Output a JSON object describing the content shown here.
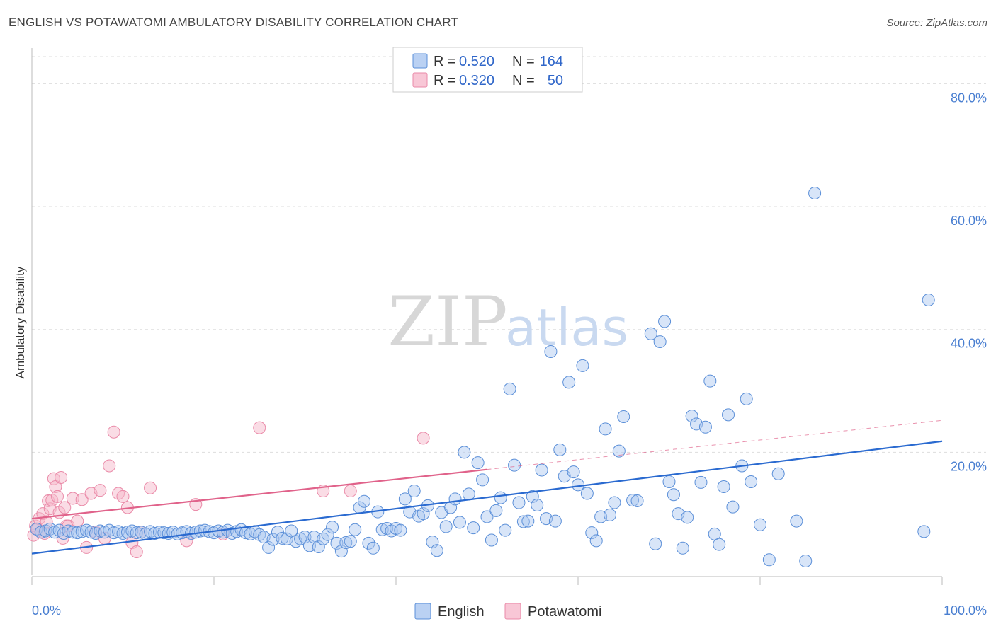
{
  "title": "ENGLISH VS POTAWATOMI AMBULATORY DISABILITY CORRELATION CHART",
  "source": "Source: ZipAtlas.com",
  "watermark": {
    "zip": "ZIP",
    "atlas": "atlas"
  },
  "colors": {
    "english_fill": "#a9c6f0",
    "english_stroke": "#5b8fd8",
    "english_line": "#2a6ad0",
    "potawatomi_fill": "#f6b9cc",
    "potawatomi_stroke": "#ea8aa8",
    "potawatomi_line": "#e0628a",
    "grid": "#dddddd",
    "tick_label": "#4a7fd1"
  },
  "legend": {
    "r_label": "R =",
    "n_label": "N =",
    "rows": [
      {
        "series": "English",
        "r": "0.520",
        "n": "164"
      },
      {
        "series": "Potawatomi",
        "r": "0.320",
        "n": "50"
      }
    ]
  },
  "chart_data": {
    "type": "scatter",
    "title": "ENGLISH VS POTAWATOMI AMBULATORY DISABILITY CORRELATION CHART",
    "xlabel": "",
    "ylabel": "Ambulatory Disability",
    "xlim": [
      0,
      100
    ],
    "ylim": [
      0,
      85
    ],
    "x_tick_labels": [
      "0.0%",
      "100.0%"
    ],
    "y_ticks": [
      20,
      40,
      60,
      80
    ],
    "y_tick_labels": [
      "20.0%",
      "40.0%",
      "60.0%",
      "80.0%"
    ],
    "legend_labels": [
      "English",
      "Potawatomi"
    ],
    "series": [
      {
        "name": "English",
        "trend": {
          "x": [
            0,
            100
          ],
          "y": [
            3.5,
            21.8
          ]
        },
        "points": [
          [
            0.5,
            7.5
          ],
          [
            1,
            7
          ],
          [
            1.5,
            7.2
          ],
          [
            2,
            7.5
          ],
          [
            2.5,
            7
          ],
          [
            3,
            7.3
          ],
          [
            3.5,
            6.8
          ],
          [
            4,
            7.2
          ],
          [
            4.5,
            7
          ],
          [
            5,
            6.9
          ],
          [
            5.5,
            7.1
          ],
          [
            6,
            7.3
          ],
          [
            6.5,
            7
          ],
          [
            7,
            6.8
          ],
          [
            7.5,
            7.2
          ],
          [
            8,
            7
          ],
          [
            8.5,
            7.3
          ],
          [
            9,
            6.9
          ],
          [
            9.5,
            7.1
          ],
          [
            10,
            6.8
          ],
          [
            10.5,
            7
          ],
          [
            11,
            7.2
          ],
          [
            11.5,
            6.9
          ],
          [
            12,
            7
          ],
          [
            12.5,
            6.7
          ],
          [
            13,
            7.1
          ],
          [
            13.5,
            6.8
          ],
          [
            14,
            7
          ],
          [
            14.5,
            6.9
          ],
          [
            15,
            6.8
          ],
          [
            15.5,
            7
          ],
          [
            16,
            6.7
          ],
          [
            16.5,
            6.9
          ],
          [
            17,
            7.1
          ],
          [
            17.5,
            6.8
          ],
          [
            18,
            7
          ],
          [
            18.5,
            7.2
          ],
          [
            19,
            7.3
          ],
          [
            19.5,
            7.1
          ],
          [
            20,
            6.9
          ],
          [
            20.5,
            7.2
          ],
          [
            21,
            7
          ],
          [
            21.5,
            7.3
          ],
          [
            22,
            6.8
          ],
          [
            22.5,
            7.1
          ],
          [
            23,
            7.4
          ],
          [
            23.5,
            6.9
          ],
          [
            24,
            6.7
          ],
          [
            24.5,
            7.1
          ],
          [
            25,
            6.6
          ],
          [
            25.5,
            6.2
          ],
          [
            26,
            4.5
          ],
          [
            26.5,
            5.8
          ],
          [
            27,
            7
          ],
          [
            27.5,
            6
          ],
          [
            28,
            5.9
          ],
          [
            28.5,
            7.2
          ],
          [
            29,
            5.5
          ],
          [
            29.5,
            5.9
          ],
          [
            30,
            6.2
          ],
          [
            30.5,
            4.8
          ],
          [
            31,
            6.2
          ],
          [
            31.5,
            4.6
          ],
          [
            32,
            5.9
          ],
          [
            32.5,
            6.6
          ],
          [
            33,
            7.8
          ],
          [
            33.5,
            5.2
          ],
          [
            34,
            3.9
          ],
          [
            34.5,
            5.3
          ],
          [
            35,
            5.5
          ],
          [
            35.5,
            7.4
          ],
          [
            36,
            11
          ],
          [
            36.5,
            12
          ],
          [
            37,
            5.2
          ],
          [
            37.5,
            4.4
          ],
          [
            38,
            10.3
          ],
          [
            38.5,
            7.4
          ],
          [
            39,
            7.6
          ],
          [
            39.5,
            7.2
          ],
          [
            40,
            7.6
          ],
          [
            40.5,
            7.3
          ],
          [
            41,
            12.4
          ],
          [
            41.5,
            10.3
          ],
          [
            42,
            13.7
          ],
          [
            42.5,
            9.6
          ],
          [
            43,
            10
          ],
          [
            43.5,
            11.3
          ],
          [
            44,
            5.4
          ],
          [
            44.5,
            4
          ],
          [
            45,
            10.2
          ],
          [
            45.5,
            7.9
          ],
          [
            46,
            11
          ],
          [
            46.5,
            12.4
          ],
          [
            47,
            8.6
          ],
          [
            47.5,
            20
          ],
          [
            48,
            13.2
          ],
          [
            48.5,
            7.7
          ],
          [
            49,
            18.3
          ],
          [
            49.5,
            15.5
          ],
          [
            50,
            9.5
          ],
          [
            50.5,
            5.7
          ],
          [
            51,
            10.5
          ],
          [
            51.5,
            12.6
          ],
          [
            52,
            7.3
          ],
          [
            52.5,
            30.3
          ],
          [
            53,
            17.9
          ],
          [
            53.5,
            11.8
          ],
          [
            54,
            8.7
          ],
          [
            54.5,
            8.8
          ],
          [
            55,
            12.8
          ],
          [
            55.5,
            11.4
          ],
          [
            56,
            17.1
          ],
          [
            56.5,
            9.2
          ],
          [
            57,
            36.4
          ],
          [
            57.5,
            8.8
          ],
          [
            58,
            20.4
          ],
          [
            58.5,
            16.1
          ],
          [
            59,
            31.4
          ],
          [
            59.5,
            16.8
          ],
          [
            60,
            14.7
          ],
          [
            60.5,
            34.1
          ],
          [
            61,
            13.3
          ],
          [
            61.5,
            6.9
          ],
          [
            62,
            5.6
          ],
          [
            62.5,
            9.5
          ],
          [
            63,
            23.8
          ],
          [
            63.5,
            9.8
          ],
          [
            64,
            11.8
          ],
          [
            64.5,
            20.2
          ],
          [
            65,
            25.8
          ],
          [
            66,
            12.2
          ],
          [
            66.5,
            12.1
          ],
          [
            68,
            39.3
          ],
          [
            68.5,
            5.1
          ],
          [
            69,
            38
          ],
          [
            69.5,
            41.3
          ],
          [
            70,
            15.2
          ],
          [
            70.5,
            13.1
          ],
          [
            71,
            10
          ],
          [
            71.5,
            4.4
          ],
          [
            72,
            9.4
          ],
          [
            72.5,
            25.9
          ],
          [
            73,
            24.6
          ],
          [
            73.5,
            15.1
          ],
          [
            74,
            24.1
          ],
          [
            74.5,
            31.6
          ],
          [
            75,
            6.7
          ],
          [
            75.5,
            5
          ],
          [
            76,
            14.4
          ],
          [
            76.5,
            26.1
          ],
          [
            77,
            11.1
          ],
          [
            78,
            17.8
          ],
          [
            78.5,
            28.7
          ],
          [
            79,
            15.2
          ],
          [
            80,
            8.2
          ],
          [
            81,
            2.5
          ],
          [
            82,
            16.5
          ],
          [
            84,
            8.8
          ],
          [
            85,
            2.3
          ],
          [
            86,
            62.2
          ],
          [
            98,
            7.1
          ],
          [
            98.5,
            44.8
          ]
        ]
      },
      {
        "name": "Potawatomi",
        "trend": {
          "x": [
            0,
            50
          ],
          "y": [
            9.2,
            17.2
          ]
        },
        "trend_extension": {
          "x": [
            50,
            100
          ],
          "y": [
            17.2,
            25.2
          ]
        },
        "points": [
          [
            0.2,
            6.5
          ],
          [
            0.4,
            8
          ],
          [
            0.6,
            7.5
          ],
          [
            0.8,
            9.2
          ],
          [
            1,
            7
          ],
          [
            1.2,
            10
          ],
          [
            1.4,
            6.8
          ],
          [
            1.6,
            8.7
          ],
          [
            1.8,
            12.1
          ],
          [
            2,
            10.8
          ],
          [
            2.2,
            12.2
          ],
          [
            2.4,
            15.7
          ],
          [
            2.6,
            14.4
          ],
          [
            2.8,
            12.8
          ],
          [
            3,
            10.2
          ],
          [
            3.2,
            15.9
          ],
          [
            3.4,
            6
          ],
          [
            3.6,
            11
          ],
          [
            3.8,
            8
          ],
          [
            4,
            8
          ],
          [
            4.5,
            12.5
          ],
          [
            5,
            8.8
          ],
          [
            5.5,
            12.3
          ],
          [
            6,
            4.5
          ],
          [
            6.5,
            13.3
          ],
          [
            7,
            7
          ],
          [
            7.5,
            13.8
          ],
          [
            8,
            6
          ],
          [
            8.5,
            17.8
          ],
          [
            9,
            23.3
          ],
          [
            9.5,
            13.3
          ],
          [
            10,
            12.8
          ],
          [
            10.5,
            11
          ],
          [
            11,
            5.3
          ],
          [
            11.5,
            3.8
          ],
          [
            12,
            7
          ],
          [
            13,
            14.2
          ],
          [
            17,
            5.6
          ],
          [
            18,
            11.5
          ],
          [
            21,
            6.7
          ],
          [
            25,
            24
          ],
          [
            32,
            13.7
          ],
          [
            35,
            13.7
          ],
          [
            43,
            22.3
          ]
        ]
      }
    ]
  }
}
